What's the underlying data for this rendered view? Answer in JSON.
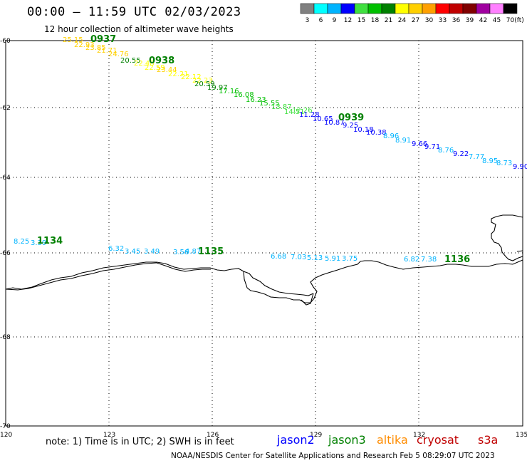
{
  "header": {
    "title": "00:00 – 11:59 UTC 02/03/2023",
    "subtitle": "12 hour collection of altimeter wave heights"
  },
  "colorbar": {
    "labels": [
      "3",
      "6",
      "9",
      "12",
      "15",
      "18",
      "21",
      "24",
      "27",
      "30",
      "33",
      "36",
      "39",
      "42",
      "45",
      "70"
    ],
    "unit": "(ft)",
    "colors": [
      "#808080",
      "#00ffff",
      "#00b4ff",
      "#0000ff",
      "#40e040",
      "#00c000",
      "#008000",
      "#ffff00",
      "#ffd000",
      "#ffa000",
      "#ff0000",
      "#c00000",
      "#800000",
      "#a000a0",
      "#ff80ff",
      "#000000"
    ]
  },
  "axes": {
    "lat_labels": [
      "-60",
      "-62",
      "-64",
      "-66",
      "-68",
      "-70"
    ],
    "lon_labels": [
      "120",
      "123",
      "126",
      "129",
      "132",
      "135"
    ]
  },
  "footer": {
    "note": "note:  1) Time is in UTC;  2) SWH is in feet",
    "satellites": [
      {
        "name": "jason2",
        "color": "#0000ff"
      },
      {
        "name": "jason3",
        "color": "#008000"
      },
      {
        "name": "altika",
        "color": "#ff8c00"
      },
      {
        "name": "cryosat",
        "color": "#c00000"
      },
      {
        "name": "s3a",
        "color": "#c00000"
      }
    ],
    "credit": "NOAA/NESDIS Center for Satellite Applications and Research    Feb  5 08:29:07 UTC 2023"
  },
  "track1": {
    "times": [
      {
        "text": "0937",
        "color": "#008000"
      },
      {
        "text": "0938",
        "color": "#008000"
      },
      {
        "text": "0939",
        "color": "#008000"
      }
    ],
    "values": [
      {
        "text": "25.15",
        "color": "#ffd000"
      },
      {
        "text": "22.93",
        "color": "#ffd000"
      },
      {
        "text": "23.85",
        "color": "#ffd000"
      },
      {
        "text": "21.71",
        "color": "#ffd000"
      },
      {
        "text": "24.76",
        "color": "#ffd000"
      },
      {
        "text": "20.55",
        "color": "#008000"
      },
      {
        "text": "22.48",
        "color": "#ffff00"
      },
      {
        "text": "22.59",
        "color": "#ffff00"
      },
      {
        "text": "23.44",
        "color": "#ffd000"
      },
      {
        "text": "22.21",
        "color": "#ffff00"
      },
      {
        "text": "22.12",
        "color": "#ffff00"
      },
      {
        "text": "22.23",
        "color": "#ffff00"
      },
      {
        "text": "20.59",
        "color": "#008000"
      },
      {
        "text": "19.97",
        "color": "#008000"
      },
      {
        "text": "17.16",
        "color": "#00c000"
      },
      {
        "text": "16.08",
        "color": "#00c000"
      },
      {
        "text": "16.23",
        "color": "#00c000"
      },
      {
        "text": "15.55",
        "color": "#00c000"
      },
      {
        "text": "13.87",
        "color": "#40e040"
      },
      {
        "text": "14.51",
        "color": "#40e040"
      },
      {
        "text": "12.26",
        "color": "#40e040"
      },
      {
        "text": "11.28",
        "color": "#0000ff"
      },
      {
        "text": "10.65",
        "color": "#0000ff"
      },
      {
        "text": "10.87",
        "color": "#0000ff"
      },
      {
        "text": "9.25",
        "color": "#0000ff"
      },
      {
        "text": "10.18",
        "color": "#0000ff"
      },
      {
        "text": "10.38",
        "color": "#0000ff"
      },
      {
        "text": "8.96",
        "color": "#00b4ff"
      },
      {
        "text": "8.91",
        "color": "#00b4ff"
      },
      {
        "text": "9.66",
        "color": "#0000ff"
      },
      {
        "text": "9.71",
        "color": "#0000ff"
      },
      {
        "text": "8.76",
        "color": "#00b4ff"
      },
      {
        "text": "9.22",
        "color": "#0000ff"
      },
      {
        "text": "7.77",
        "color": "#00b4ff"
      },
      {
        "text": "8.95",
        "color": "#00b4ff"
      },
      {
        "text": "8.73",
        "color": "#00b4ff"
      },
      {
        "text": "9.90",
        "color": "#0000ff"
      }
    ]
  },
  "track2": {
    "times": [
      {
        "text": "1134",
        "color": "#008000"
      },
      {
        "text": "1135",
        "color": "#008000"
      },
      {
        "text": "1136",
        "color": "#008000"
      }
    ],
    "values": [
      {
        "text": "8.25",
        "color": "#00b4ff"
      },
      {
        "text": "3.39",
        "color": "#00b4ff"
      },
      {
        "text": "6.32",
        "color": "#00b4ff"
      },
      {
        "text": "3.45",
        "color": "#00b4ff"
      },
      {
        "text": "3.49",
        "color": "#00b4ff"
      },
      {
        "text": "3.56",
        "color": "#00b4ff"
      },
      {
        "text": "4.87",
        "color": "#00b4ff"
      },
      {
        "text": "6.68",
        "color": "#00b4ff"
      },
      {
        "text": "7.03",
        "color": "#00b4ff"
      },
      {
        "text": "5.13",
        "color": "#00b4ff"
      },
      {
        "text": "5.91",
        "color": "#00b4ff"
      },
      {
        "text": "3.75",
        "color": "#00b4ff"
      },
      {
        "text": "6.82",
        "color": "#00b4ff"
      },
      {
        "text": "7.38",
        "color": "#00b4ff"
      }
    ]
  }
}
